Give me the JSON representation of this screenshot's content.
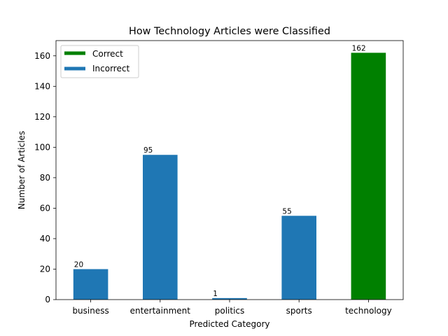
{
  "chart_data": {
    "type": "bar",
    "title": "How Technology Articles were Classified",
    "xlabel": "Predicted Category",
    "ylabel": "Number of Articles",
    "categories": [
      "business",
      "entertainment",
      "politics",
      "sports",
      "technology"
    ],
    "values": [
      20,
      95,
      1,
      55,
      162
    ],
    "bar_status": [
      "Incorrect",
      "Incorrect",
      "Incorrect",
      "Incorrect",
      "Correct"
    ],
    "data_labels": [
      "20",
      "95",
      "1",
      "55",
      "162"
    ],
    "ylim": [
      0,
      170
    ],
    "yticks": [
      0,
      20,
      40,
      60,
      80,
      100,
      120,
      140,
      160
    ],
    "grid": false,
    "legend": {
      "placement": "top-left",
      "entries": [
        {
          "label": "Correct",
          "color": "#008000"
        },
        {
          "label": "Incorrect",
          "color": "#1f77b4"
        }
      ]
    },
    "colors": {
      "Correct": "#008000",
      "Incorrect": "#1f77b4"
    }
  }
}
